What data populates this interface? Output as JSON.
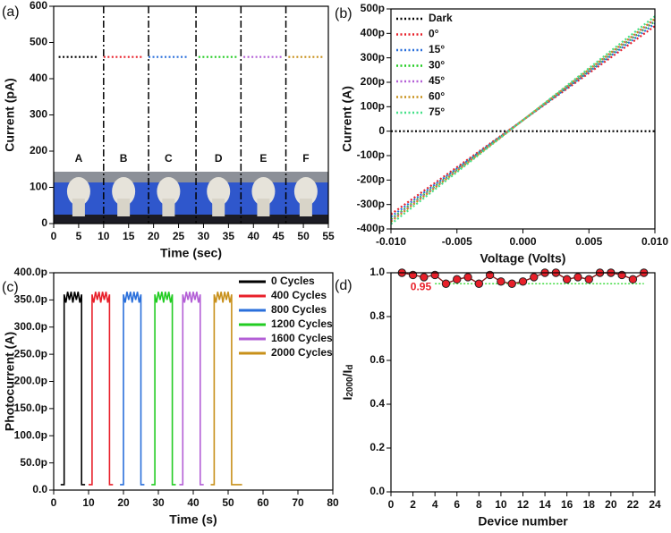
{
  "chart_data": [
    {
      "type": "line",
      "panel_label": "(a)",
      "xlabel": "Time (sec)",
      "ylabel": "Current (pA)",
      "xlim": [
        0,
        55
      ],
      "xticks": [
        0,
        5,
        10,
        15,
        20,
        25,
        30,
        35,
        40,
        45,
        50,
        55
      ],
      "ylim": [
        0,
        600
      ],
      "yticks": [
        0,
        100,
        200,
        300,
        400,
        500,
        600
      ],
      "line_style": "dotted",
      "dividers": [
        10,
        19,
        28.5,
        37.5,
        46.5
      ],
      "segment_labels": [
        "A",
        "B",
        "C",
        "D",
        "E",
        "F"
      ],
      "series": [
        {
          "color": "#000000",
          "x": [
            1,
            2,
            3,
            4,
            5,
            6,
            7,
            8,
            9
          ],
          "values": [
            460,
            460,
            460,
            460,
            460,
            460,
            460,
            460,
            460
          ]
        },
        {
          "color": "#e8202a",
          "x": [
            10,
            11,
            12,
            13,
            14,
            15,
            16,
            17,
            18
          ],
          "values": [
            460,
            460,
            460,
            460,
            460,
            460,
            460,
            460,
            460
          ]
        },
        {
          "color": "#2a6fdb",
          "x": [
            19,
            20,
            21,
            22,
            23,
            24,
            25,
            26,
            27
          ],
          "values": [
            460,
            460,
            460,
            460,
            460,
            460,
            460,
            460,
            460
          ]
        },
        {
          "color": "#22cc22",
          "x": [
            29,
            30,
            31,
            32,
            33,
            34,
            35,
            36,
            37
          ],
          "values": [
            460,
            460,
            460,
            460,
            460,
            460,
            460,
            460,
            460
          ]
        },
        {
          "color": "#b35fd6",
          "x": [
            38,
            39,
            40,
            41,
            42,
            43,
            44,
            45,
            46
          ],
          "values": [
            460,
            460,
            460,
            460,
            460,
            460,
            460,
            460,
            460
          ]
        },
        {
          "color": "#c8901a",
          "x": [
            47,
            48,
            49,
            50,
            51,
            52,
            53,
            54
          ],
          "values": [
            460,
            460,
            460,
            460,
            460,
            460,
            460,
            460
          ]
        }
      ]
    },
    {
      "type": "line",
      "panel_label": "(b)",
      "xlabel": "Voltage (Volts)",
      "ylabel": "Current (A)",
      "xlim": [
        -0.01,
        0.01
      ],
      "xticks": [
        {
          "value": -0.01,
          "label": "-0.010"
        },
        {
          "value": -0.005,
          "label": "-0.005"
        },
        {
          "value": 0,
          "label": "0.000"
        },
        {
          "value": 0.005,
          "label": "0.005"
        },
        {
          "value": 0.01,
          "label": "0.010"
        }
      ],
      "ylim": [
        -400,
        500
      ],
      "yticks": [
        {
          "value": -400,
          "label": "-400p"
        },
        {
          "value": -300,
          "label": "-300p"
        },
        {
          "value": -200,
          "label": "-200p"
        },
        {
          "value": -100,
          "label": "-100p"
        },
        0,
        {
          "value": 100,
          "label": "100p"
        },
        {
          "value": 200,
          "label": "200p"
        },
        {
          "value": 300,
          "label": "300p"
        },
        {
          "value": 400,
          "label": "400p"
        },
        {
          "value": 500,
          "label": "500p"
        }
      ],
      "line_style": "dotted",
      "legend": "upper left",
      "series": [
        {
          "name": "Dark",
          "color": "#000000",
          "x": [
            -0.01,
            0.01
          ],
          "values": [
            0,
            0
          ]
        },
        {
          "name": "0°",
          "color": "#e8202a",
          "x": [
            -0.01,
            0.01
          ],
          "values": [
            -340,
            430
          ]
        },
        {
          "name": "15°",
          "color": "#2a6fdb",
          "x": [
            -0.01,
            0.01
          ],
          "values": [
            -350,
            440
          ]
        },
        {
          "name": "30°",
          "color": "#22cc22",
          "x": [
            -0.01,
            0.01
          ],
          "values": [
            -360,
            450
          ]
        },
        {
          "name": "45°",
          "color": "#b35fd6",
          "x": [
            -0.01,
            0.01
          ],
          "values": [
            -365,
            455
          ]
        },
        {
          "name": "60°",
          "color": "#c8901a",
          "x": [
            -0.01,
            0.01
          ],
          "values": [
            -370,
            460
          ]
        },
        {
          "name": "75°",
          "color": "#44e088",
          "x": [
            -0.01,
            0.01
          ],
          "values": [
            -380,
            470
          ]
        }
      ]
    },
    {
      "type": "line",
      "panel_label": "(c)",
      "xlabel": "Time (s)",
      "ylabel": "Photocurrent (A)",
      "xlim": [
        0,
        80
      ],
      "xticks": [
        0,
        10,
        20,
        30,
        40,
        50,
        60,
        70,
        80
      ],
      "ylim": [
        0,
        400
      ],
      "yticks": [
        {
          "value": 0,
          "label": "0.0"
        },
        {
          "value": 50,
          "label": "50.0p"
        },
        {
          "value": 100,
          "label": "100.0p"
        },
        {
          "value": 150,
          "label": "150.0p"
        },
        {
          "value": 200,
          "label": "200.0p"
        },
        {
          "value": 250,
          "label": "250.0p"
        },
        {
          "value": 300,
          "label": "300.0p"
        },
        {
          "value": 350,
          "label": "350.0p"
        },
        {
          "value": 400,
          "label": "400.0p"
        }
      ],
      "line_style": "solid",
      "legend": "upper right",
      "series": [
        {
          "name": "0 Cycles",
          "color": "#000000",
          "x": [
            2,
            3,
            3,
            3.5,
            4,
            4.5,
            5,
            5.5,
            6,
            6.5,
            7,
            7.5,
            8,
            8,
            9
          ],
          "values": [
            10,
            10,
            360,
            345,
            365,
            350,
            365,
            345,
            365,
            350,
            365,
            345,
            360,
            10,
            10
          ]
        },
        {
          "name": "400 Cycles",
          "color": "#e8202a",
          "x": [
            10,
            11,
            11,
            11.5,
            12,
            12.5,
            13,
            13.5,
            14,
            14.5,
            15,
            15.5,
            16,
            16,
            17
          ],
          "values": [
            10,
            10,
            360,
            345,
            365,
            350,
            365,
            345,
            365,
            350,
            365,
            345,
            360,
            10,
            10
          ]
        },
        {
          "name": "800 Cycles",
          "color": "#2a6fdb",
          "x": [
            19,
            20,
            20,
            20.5,
            21,
            21.5,
            22,
            22.5,
            23,
            23.5,
            24,
            24.5,
            25,
            25,
            26
          ],
          "values": [
            10,
            10,
            360,
            345,
            365,
            350,
            365,
            345,
            365,
            350,
            365,
            345,
            360,
            10,
            10
          ]
        },
        {
          "name": "1200 Cycles",
          "color": "#22cc22",
          "x": [
            28,
            29,
            29,
            29.5,
            30,
            30.5,
            31,
            31.5,
            32,
            32.5,
            33,
            33.5,
            34,
            34,
            35
          ],
          "values": [
            10,
            10,
            360,
            345,
            365,
            350,
            365,
            345,
            365,
            350,
            365,
            345,
            360,
            10,
            10
          ]
        },
        {
          "name": "1600 Cycles",
          "color": "#b35fd6",
          "x": [
            36,
            37,
            37,
            37.5,
            38,
            38.5,
            39,
            39.5,
            40,
            40.5,
            41,
            41.5,
            42,
            42,
            43
          ],
          "values": [
            10,
            10,
            360,
            345,
            365,
            350,
            365,
            345,
            365,
            350,
            365,
            345,
            360,
            10,
            10
          ]
        },
        {
          "name": "2000 Cycles",
          "color": "#c8901a",
          "x": [
            45,
            46,
            46,
            46.5,
            47,
            47.5,
            48,
            48.5,
            49,
            49.5,
            50,
            50.5,
            51,
            51,
            54
          ],
          "values": [
            10,
            10,
            360,
            345,
            365,
            350,
            365,
            345,
            365,
            350,
            365,
            345,
            360,
            10,
            10
          ]
        }
      ]
    },
    {
      "type": "scatter",
      "panel_label": "(d)",
      "xlabel": "Device number",
      "ylabel": [
        "I",
        "2000",
        "/I",
        "d"
      ],
      "xlim": [
        0,
        24
      ],
      "xticks": [
        0,
        2,
        4,
        6,
        8,
        10,
        12,
        14,
        16,
        18,
        20,
        22,
        24
      ],
      "ylim": [
        0,
        1
      ],
      "yticks": [
        {
          "value": 0,
          "label": "0.0"
        },
        0.2,
        0.4,
        0.6,
        0.8,
        {
          "value": 1,
          "label": "1.0"
        }
      ],
      "color": "#e8202a",
      "line_color": "#8b1a1a",
      "x": [
        1,
        2,
        3,
        4,
        5,
        6,
        7,
        8,
        9,
        10,
        11,
        12,
        13,
        14,
        15,
        16,
        17,
        18,
        19,
        20,
        21,
        22,
        23
      ],
      "values": [
        1.0,
        0.99,
        0.98,
        0.99,
        0.95,
        0.97,
        0.98,
        0.95,
        0.99,
        0.96,
        0.95,
        0.96,
        0.98,
        1.0,
        1.0,
        0.97,
        0.98,
        0.97,
        1.0,
        1.0,
        0.99,
        0.97,
        1.0
      ],
      "reference": {
        "value": 0.95,
        "label": "0.95",
        "x": [
          4,
          23
        ],
        "color": "#44dd44"
      }
    }
  ]
}
